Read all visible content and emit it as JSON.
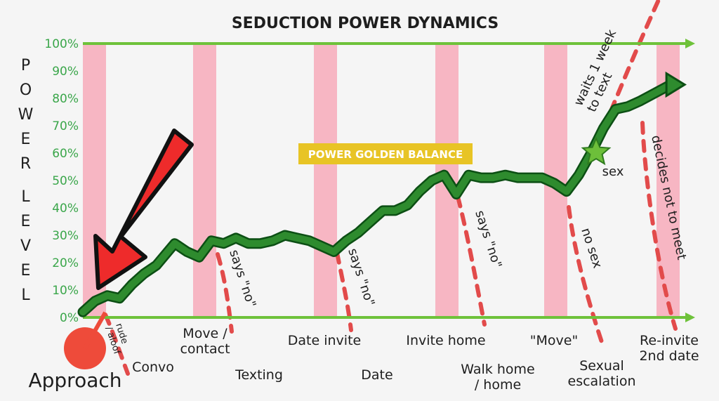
{
  "chart_data": {
    "type": "line",
    "title": "SEDUCTION POWER DYNAMICS",
    "ylabel": "POWER LEVEL",
    "ylim": [
      0,
      100
    ],
    "yticks": [
      "0%",
      "10%",
      "20%",
      "30%",
      "40%",
      "50%",
      "60%",
      "70%",
      "80%",
      "90%",
      "100%"
    ],
    "y_axis_color": "#3aa64a",
    "line_color": "#2e8b2e",
    "dash_color": "#e24b4b",
    "band_color": "#f7b6c3",
    "highlight_label": "POWER GOLDEN BALANCE",
    "highlight_color": "#e8c425",
    "stage_labels_upper": [
      "Move /\ncontact",
      "Date invite",
      "Invite home",
      "\"Move\"",
      "Re-invite\n2nd date"
    ],
    "stage_labels_lower": [
      "Approach",
      "Convo",
      "Texting",
      "Date",
      "Walk home\n/ home",
      "Sexual\nescalation"
    ],
    "bands_count": 6,
    "series": [
      {
        "x": [
          0,
          2,
          4,
          6,
          8,
          10,
          12,
          15,
          17,
          19,
          21,
          23,
          25,
          27,
          29,
          31,
          33,
          35,
          37,
          39,
          41,
          43,
          45,
          47,
          49,
          51,
          53,
          55,
          57,
          59,
          61,
          63,
          65,
          67,
          69,
          71,
          73,
          75,
          77,
          79,
          81,
          83,
          85,
          87,
          89,
          91
        ],
        "values": [
          2,
          6,
          8,
          7,
          12,
          16,
          19,
          27,
          24,
          22,
          28,
          27,
          29,
          27,
          27,
          28,
          30,
          29,
          28,
          26,
          24,
          28,
          31,
          35,
          39,
          39,
          41,
          46,
          50,
          52,
          45,
          52,
          51,
          51,
          52,
          51,
          51,
          51,
          49,
          46,
          52,
          60,
          69,
          76,
          77,
          79
        ]
      }
    ],
    "arrow_end": {
      "x": 96,
      "y": 85
    },
    "annotations": [
      {
        "text": "rude\n/ aloof",
        "type": "drop"
      },
      {
        "text": "says \"no\"",
        "type": "drop"
      },
      {
        "text": "says \"no\"",
        "type": "drop"
      },
      {
        "text": "says \"no\"",
        "type": "drop"
      },
      {
        "text": "no sex",
        "type": "drop"
      },
      {
        "text": "sex",
        "type": "star"
      },
      {
        "text": "waits 1 week\nto text",
        "type": "rise"
      },
      {
        "text": "decides not to meet",
        "type": "drop"
      }
    ]
  }
}
